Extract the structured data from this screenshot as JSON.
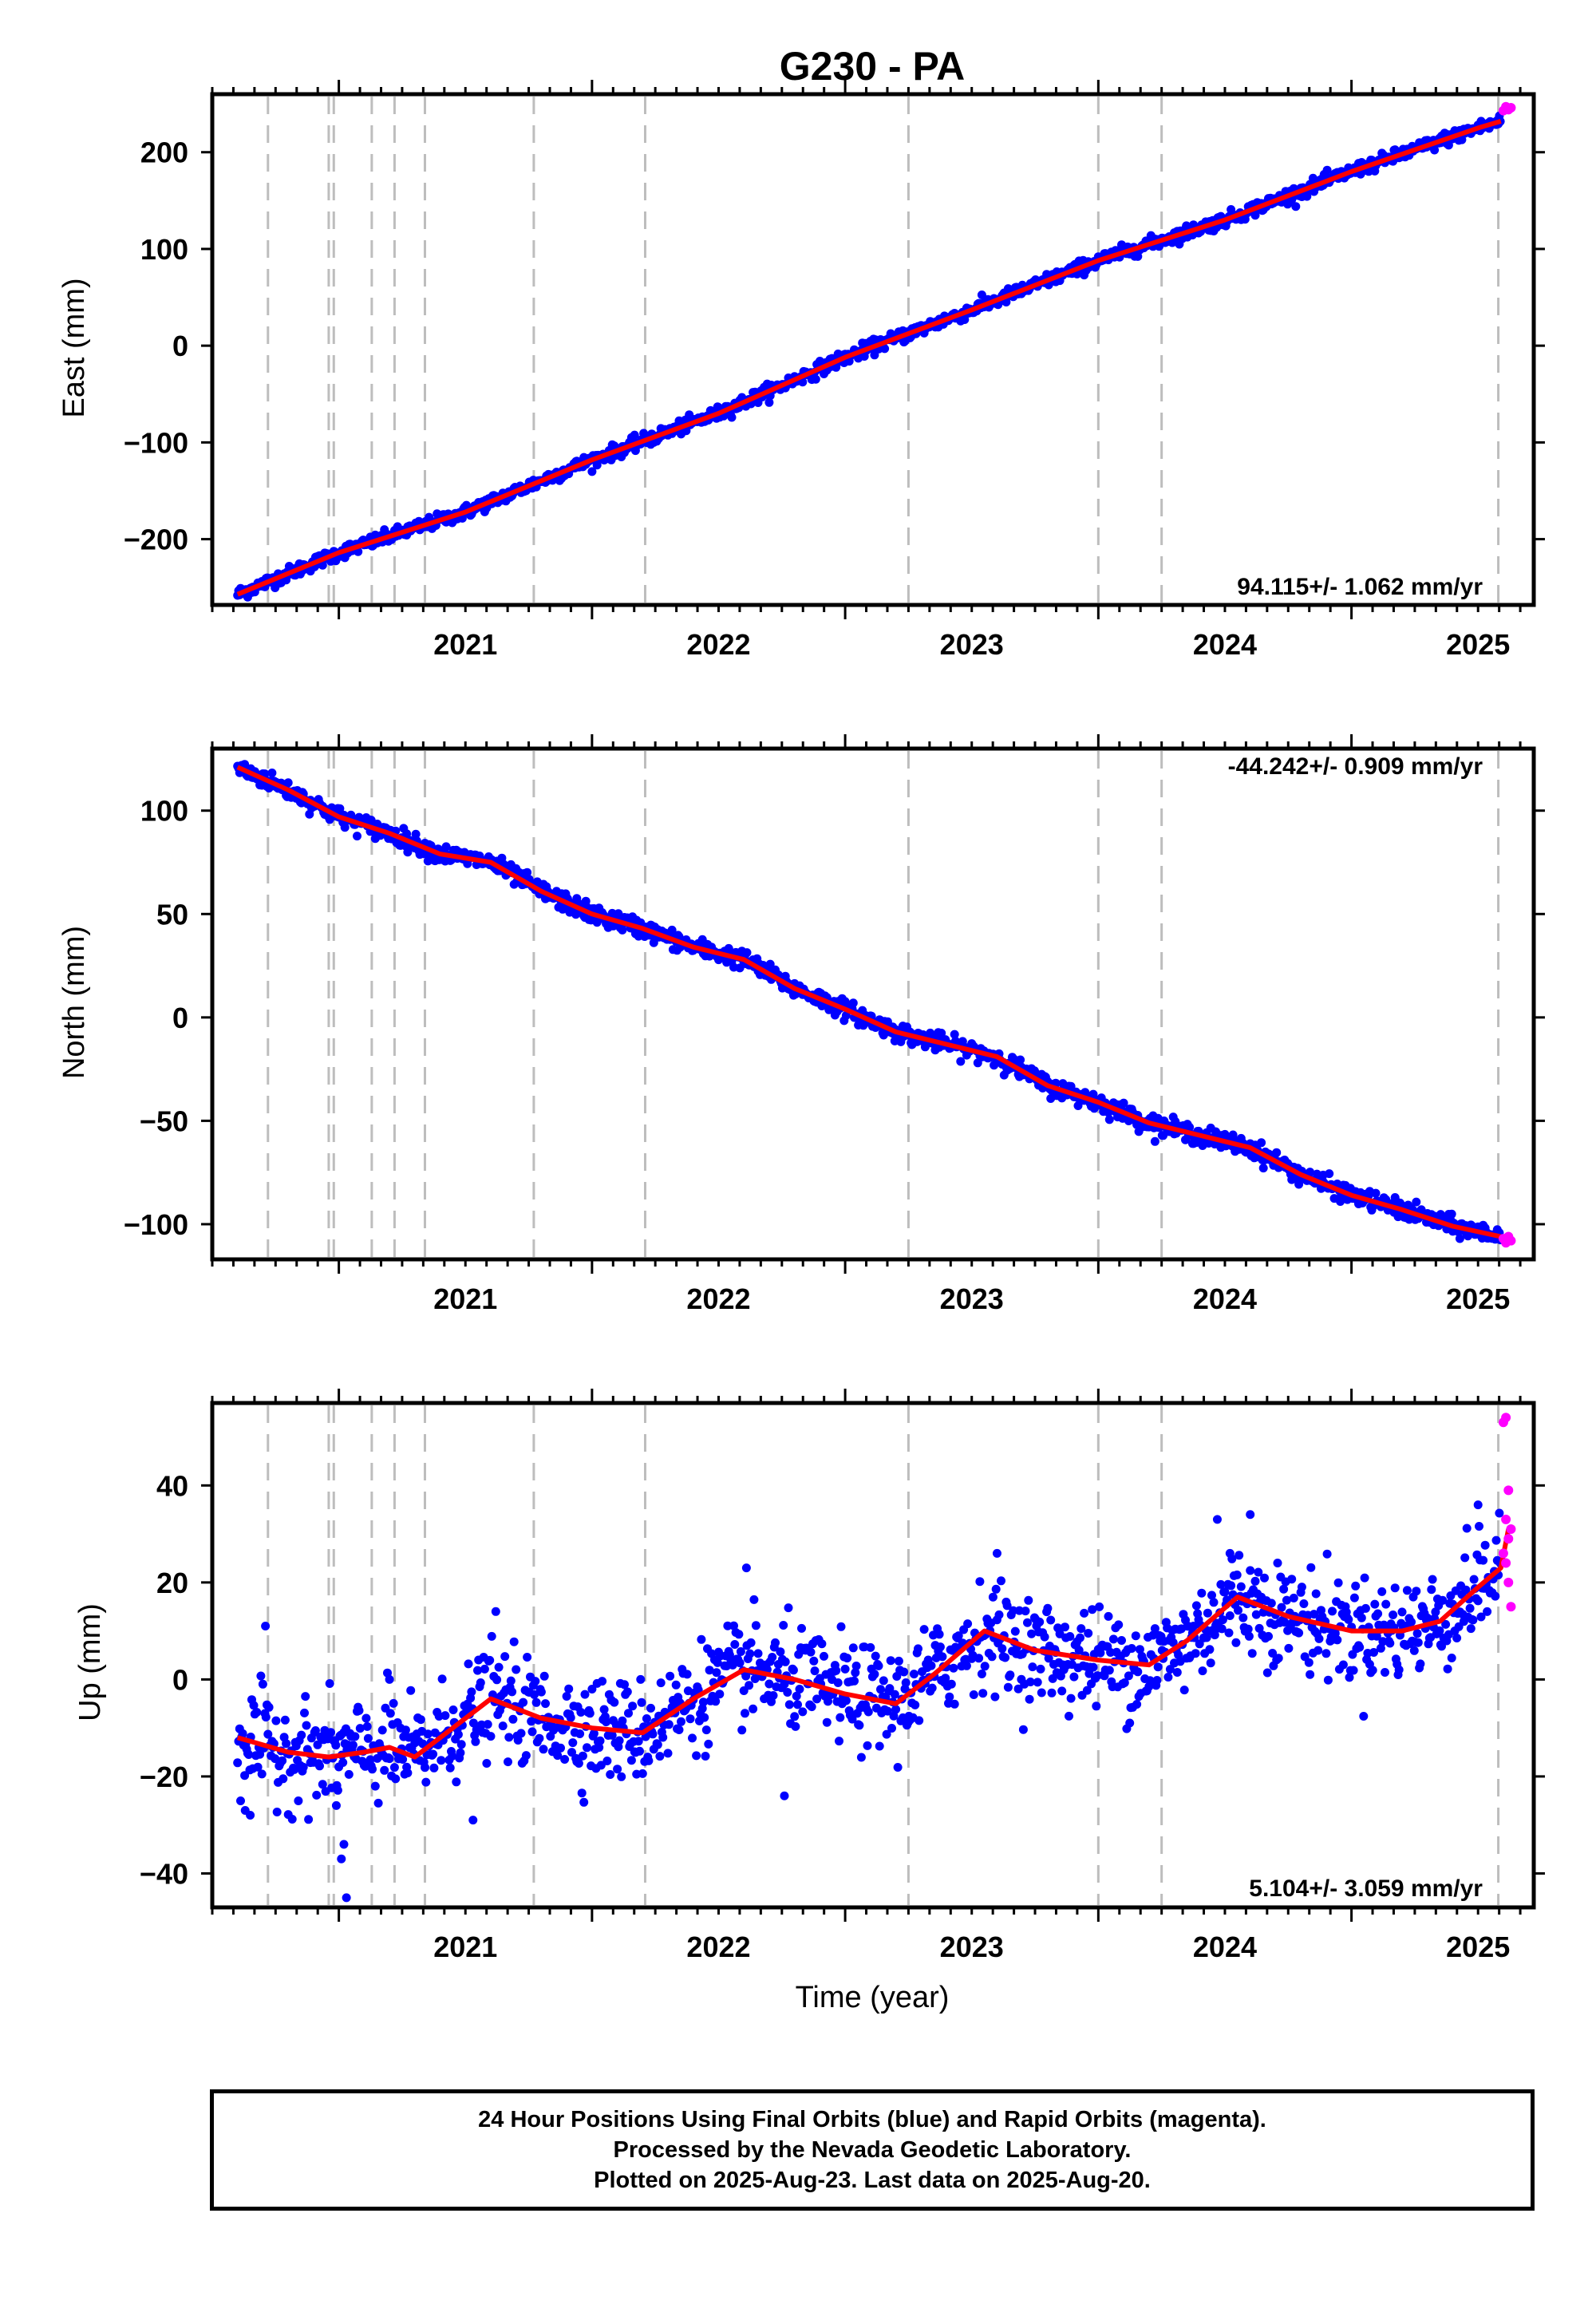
{
  "title": "G230 - PA",
  "xlabel": "Time (year)",
  "xticks": [
    2021,
    2022,
    2023,
    2024,
    2025
  ],
  "footer": {
    "line1": "24 Hour Positions Using Final Orbits (blue) and Rapid Orbits (magenta).",
    "line2": "Processed by the Nevada Geodetic Laboratory.",
    "line3": "Plotted on 2025-Aug-23. Last data on 2025-Aug-20."
  },
  "colors": {
    "final": "#0000ff",
    "rapid": "#ff00ff",
    "model": "#ff0000",
    "events": "#bdbdbd"
  },
  "chart_data": [
    {
      "type": "scatter",
      "name": "east",
      "ylabel": "East (mm)",
      "rate_text": "94.115+/- 1.062 mm/yr",
      "rate_position": "bottom-right",
      "xlim": [
        2020.5,
        2025.72
      ],
      "ylim": [
        -268,
        260
      ],
      "yticks": [
        -200,
        -100,
        0,
        100,
        200
      ],
      "ytick_labels": [
        "−200",
        "−100",
        "0",
        "100",
        "200"
      ],
      "event_lines": [
        2020.72,
        2020.96,
        2020.98,
        2021.13,
        2021.22,
        2021.34,
        2021.77,
        2022.21,
        2023.25,
        2024.0,
        2024.25,
        2025.58
      ],
      "trend": {
        "x": [
          2020.6,
          2021.0,
          2021.5,
          2022.0,
          2022.5,
          2023.0,
          2023.5,
          2024.0,
          2024.5,
          2025.0,
          2025.5,
          2025.59
        ],
        "y": [
          -257,
          -214,
          -172,
          -118,
          -70,
          -12,
          37,
          88,
          130,
          180,
          225,
          232
        ]
      },
      "rapid": {
        "x": [
          2025.6,
          2025.61,
          2025.62,
          2025.63
        ],
        "y": [
          243,
          247,
          244,
          246
        ]
      },
      "final_noise_mm": 3.5,
      "final_start": 2020.6,
      "final_end": 2025.59
    },
    {
      "type": "scatter",
      "name": "north",
      "ylabel": "North (mm)",
      "rate_text": "-44.242+/- 0.909 mm/yr",
      "rate_position": "top-right",
      "xlim": [
        2020.5,
        2025.72
      ],
      "ylim": [
        -117,
        130
      ],
      "yticks": [
        -100,
        -50,
        0,
        50,
        100
      ],
      "ytick_labels": [
        "−100",
        "−50",
        "0",
        "50",
        "100"
      ],
      "event_lines": [
        2020.72,
        2020.96,
        2020.98,
        2021.13,
        2021.22,
        2021.34,
        2021.77,
        2022.21,
        2023.25,
        2024.0,
        2024.25,
        2025.58
      ],
      "trend": {
        "x": [
          2020.6,
          2020.8,
          2021.0,
          2021.2,
          2021.4,
          2021.6,
          2021.8,
          2022.0,
          2022.2,
          2022.4,
          2022.6,
          2022.8,
          2023.0,
          2023.2,
          2023.4,
          2023.6,
          2023.8,
          2024.0,
          2024.2,
          2024.4,
          2024.6,
          2024.8,
          2025.0,
          2025.2,
          2025.4,
          2025.59
        ],
        "y": [
          121,
          110,
          97,
          89,
          79,
          75,
          61,
          50,
          43,
          34,
          28,
          14,
          4,
          -7,
          -13,
          -19,
          -33,
          -41,
          -51,
          -57,
          -63,
          -76,
          -86,
          -93,
          -101,
          -106
        ]
      },
      "rapid": {
        "x": [
          2025.6,
          2025.61,
          2025.62,
          2025.63
        ],
        "y": [
          -107,
          -109,
          -106,
          -108
        ]
      },
      "final_noise_mm": 2.2,
      "final_start": 2020.6,
      "final_end": 2025.59
    },
    {
      "type": "scatter",
      "name": "up",
      "ylabel": "Up (mm)",
      "rate_text": "5.104+/- 3.059 mm/yr",
      "rate_position": "bottom-right",
      "xlim": [
        2020.5,
        2025.72
      ],
      "ylim": [
        -47,
        57
      ],
      "yticks": [
        -40,
        -20,
        0,
        20,
        40
      ],
      "ytick_labels": [
        "−40",
        "−20",
        "0",
        "20",
        "40"
      ],
      "event_lines": [
        2020.72,
        2020.96,
        2020.98,
        2021.13,
        2021.22,
        2021.34,
        2021.77,
        2022.21,
        2023.25,
        2024.0,
        2024.25,
        2025.58
      ],
      "trend": {
        "x": [
          2020.6,
          2020.8,
          2020.96,
          2021.1,
          2021.2,
          2021.3,
          2021.45,
          2021.6,
          2021.8,
          2022.0,
          2022.2,
          2022.4,
          2022.6,
          2022.8,
          2023.0,
          2023.2,
          2023.35,
          2023.55,
          2023.75,
          2024.0,
          2024.2,
          2024.35,
          2024.55,
          2024.75,
          2025.0,
          2025.2,
          2025.35,
          2025.5,
          2025.59,
          2025.62
        ],
        "y": [
          -12,
          -15,
          -16,
          -15,
          -14,
          -16,
          -10,
          -4,
          -8,
          -10,
          -11,
          -4,
          2,
          0,
          -3,
          -5,
          1,
          10,
          6,
          4,
          3,
          8,
          17,
          13,
          10,
          10,
          12,
          19,
          23,
          31
        ]
      },
      "rapid": {
        "x": [
          2025.6,
          2025.61,
          2025.62,
          2025.63,
          2025.6,
          2025.61,
          2025.62,
          2025.63,
          2025.61,
          2025.62
        ],
        "y": [
          53,
          54,
          39,
          31,
          26,
          24,
          20,
          15,
          33,
          29
        ]
      },
      "outliers": {
        "x": [
          2020.63,
          2020.65,
          2020.71,
          2020.99,
          2021.01,
          2021.02,
          2021.03,
          2021.2,
          2021.53,
          2021.62,
          2022.61,
          2022.76,
          2023.6,
          2024.47,
          2024.52,
          2024.6,
          2025.5
        ],
        "y": [
          -27,
          -28,
          11,
          -26,
          -37,
          -34,
          -45,
          0,
          -29,
          14,
          23,
          -24,
          26,
          33,
          26,
          34,
          36
        ]
      },
      "final_noise_mm": 5.2,
      "final_start": 2020.6,
      "final_end": 2025.59
    }
  ]
}
